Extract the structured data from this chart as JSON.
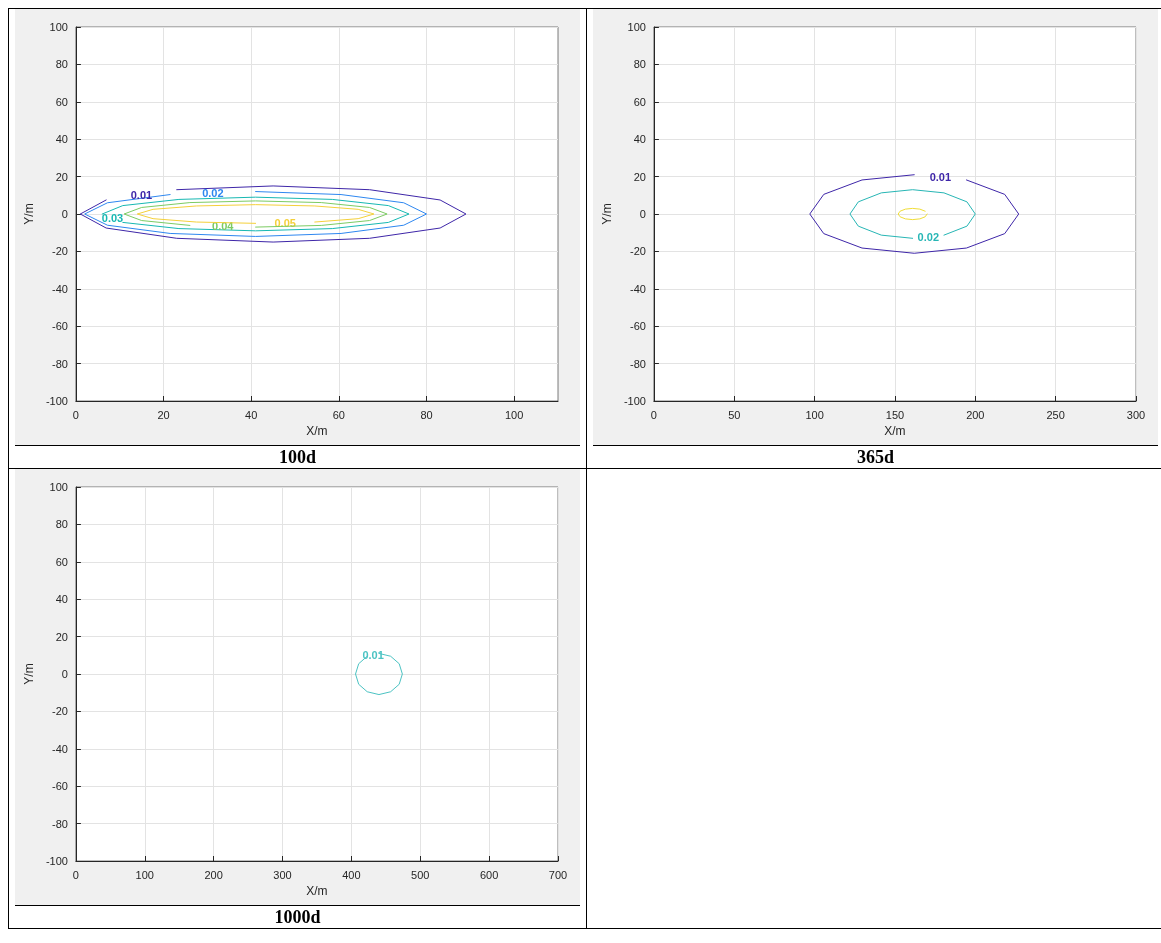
{
  "chart_data": [
    {
      "type": "line",
      "title": "100d",
      "xlabel": "X/m",
      "ylabel": "Y/m",
      "xlim": [
        0,
        110
      ],
      "xticks": [
        0,
        20,
        40,
        60,
        80,
        100
      ],
      "ylim": [
        -100,
        100
      ],
      "yticks": [
        -100,
        -80,
        -60,
        -40,
        -20,
        0,
        20,
        40,
        60,
        80,
        100
      ],
      "grid": true,
      "marker": "none",
      "line_style": "solid",
      "series": [
        {
          "name": "0.01",
          "color": "#3e26a8",
          "x": [
            6.9,
            1,
            6.9,
            23,
            45,
            67,
            83.1,
            89,
            83.1,
            67,
            45,
            23
          ],
          "values": [
            7.5,
            0,
            -7.5,
            -13,
            -15,
            -13,
            -7.5,
            0,
            7.5,
            13,
            15,
            13
          ]
        },
        {
          "name": "0.02",
          "color": "#2e87f0",
          "x": [
            21.5,
            7.2,
            2,
            7.2,
            21.5,
            41,
            60.5,
            74.8,
            80,
            74.8,
            60.5,
            41
          ],
          "values": [
            10.4,
            6,
            0,
            -6,
            -10.4,
            -12,
            -10.4,
            -6,
            0,
            6,
            10.4,
            12
          ]
        },
        {
          "name": "0.03",
          "color": "#17b8b2",
          "x": [
            10.7,
            23.5,
            41,
            58.5,
            71.3,
            76,
            71.3,
            58.5,
            41,
            23.5,
            10.7,
            6
          ],
          "values": [
            -4.5,
            -7.8,
            -9,
            -7.8,
            -4.5,
            0,
            4.5,
            7.8,
            9,
            7.8,
            4.5,
            0
          ]
        },
        {
          "name": "0.04",
          "color": "#7ccb63",
          "x": [
            41,
            56,
            67,
            71,
            67,
            56,
            41,
            26,
            15,
            11,
            15,
            26
          ],
          "values": [
            -7,
            -6.1,
            -3.5,
            0,
            3.5,
            6.1,
            7,
            6.1,
            3.5,
            0,
            -3.5,
            -6.1
          ]
        },
        {
          "name": "0.05",
          "color": "#f4d03a",
          "x": [
            54.5,
            64.4,
            68,
            64.4,
            54.5,
            41,
            27.5,
            17.6,
            14,
            17.6,
            27.5,
            41
          ],
          "values": [
            -4.3,
            -2.5,
            0,
            2.5,
            4.3,
            5,
            4.3,
            2.5,
            0,
            -2.5,
            -4.3,
            -5
          ]
        }
      ]
    },
    {
      "type": "line",
      "title": "365d",
      "xlabel": "X/m",
      "ylabel": "Y/m",
      "xlim": [
        0,
        300
      ],
      "xticks": [
        0,
        50,
        100,
        150,
        200,
        250,
        300
      ],
      "ylim": [
        -100,
        100
      ],
      "yticks": [
        -100,
        -80,
        -60,
        -40,
        -20,
        0,
        20,
        40,
        60,
        80,
        100
      ],
      "grid": true,
      "marker": "none",
      "line_style": "solid",
      "series": [
        {
          "name": "0.01",
          "color": "#3e26a8",
          "x": [
            162,
            129.5,
            105.7,
            97,
            105.7,
            129.5,
            162,
            194.5,
            218.3,
            227,
            218.3,
            194.5
          ],
          "values": [
            21,
            18.2,
            10.5,
            0,
            -10.5,
            -18.2,
            -21,
            -18.2,
            -10.5,
            0,
            10.5,
            18.2
          ]
        },
        {
          "name": "0.02",
          "color": "#27b6b5",
          "x": [
            180.5,
            194.8,
            200,
            194.8,
            180.5,
            161,
            141.5,
            127.2,
            122,
            127.2,
            141.5,
            161
          ],
          "values": [
            -11.3,
            -6.5,
            0,
            6.5,
            11.3,
            13,
            11.3,
            6.5,
            0,
            -6.5,
            -11.3,
            -13
          ]
        },
        {
          "color": "#f0dd38",
          "x": [
            168.8,
            165.5,
            161,
            156.5,
            153.2,
            152,
            153.2,
            156.5,
            161,
            165.5,
            168.8,
            170
          ],
          "values": [
            1.5,
            2.6,
            3,
            2.6,
            1.5,
            0,
            -1.5,
            -2.6,
            -3,
            -2.6,
            -1.5,
            0
          ]
        }
      ]
    },
    {
      "type": "line",
      "title": "1000d",
      "xlabel": "X/m",
      "ylabel": "Y/m",
      "xlim": [
        0,
        700
      ],
      "xticks": [
        0,
        100,
        200,
        300,
        400,
        500,
        600,
        700
      ],
      "ylim": [
        -100,
        100
      ],
      "yticks": [
        -100,
        -80,
        -60,
        -40,
        -20,
        0,
        20,
        40,
        60,
        80,
        100
      ],
      "grid": true,
      "marker": "none",
      "line_style": "solid",
      "series": [
        {
          "name": "0.01",
          "color": "#4cc3c3",
          "x": [
            423,
            410.6,
            406,
            410.6,
            423,
            440,
            457,
            469.4,
            474,
            469.4,
            457,
            440
          ],
          "values": [
            9.5,
            5.5,
            0,
            -5.5,
            -9.5,
            -11,
            -9.5,
            -5.5,
            0,
            5.5,
            9.5,
            11
          ]
        }
      ]
    }
  ]
}
